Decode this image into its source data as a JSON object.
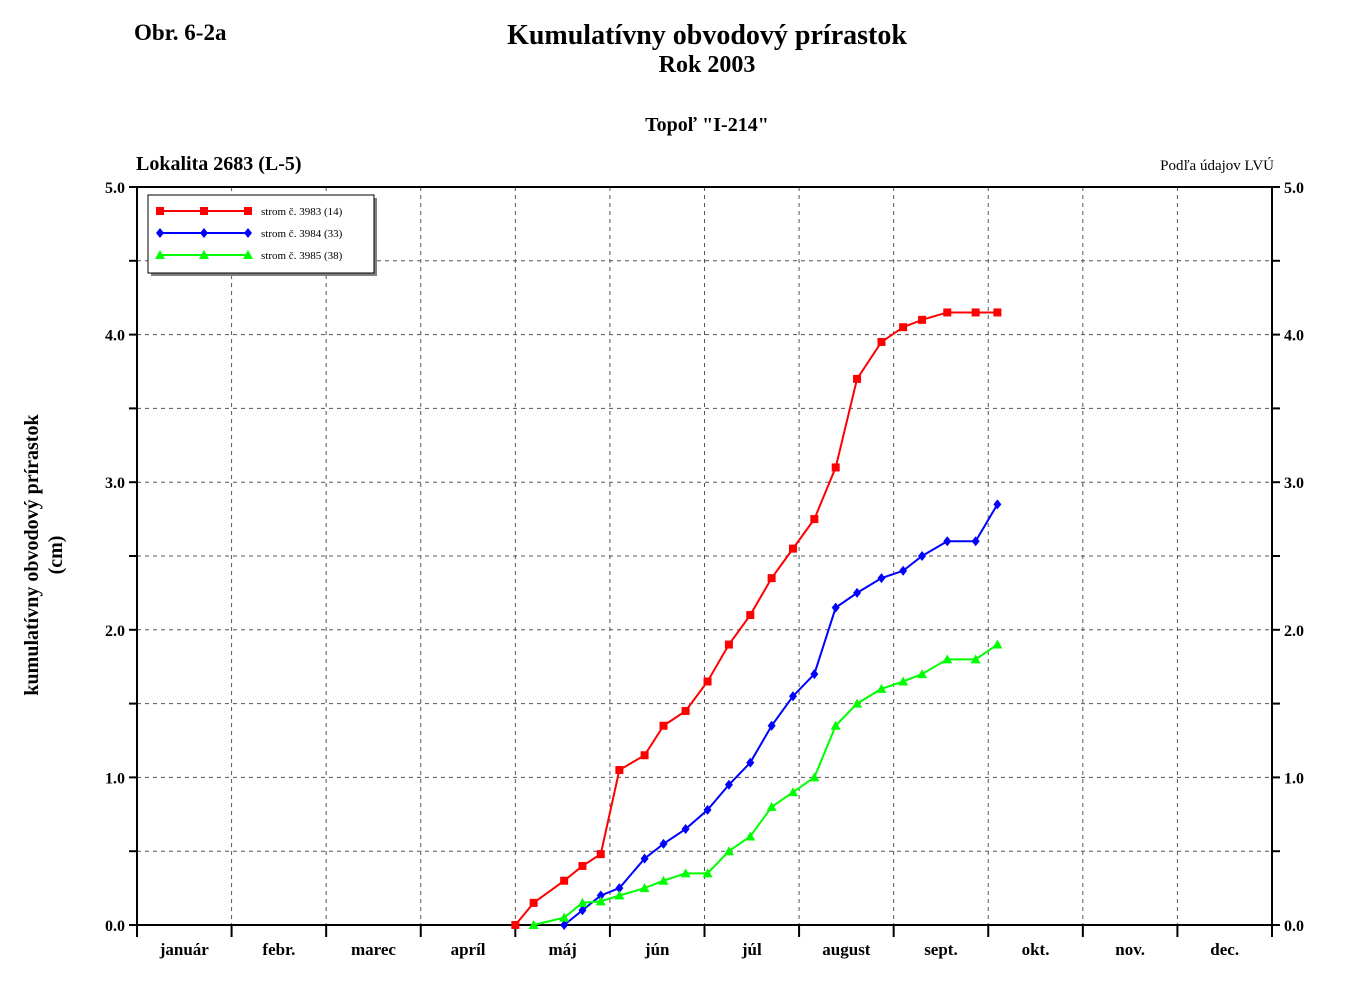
{
  "figure_label": "Obr. 6-2a",
  "header": {
    "title": "Kumulatívny obvodový prírastok",
    "subtitle": "Rok 2003",
    "species": "Topoľ \"I-214\"",
    "locality": "Lokalita 2683 (L-5)",
    "source": "Podľa údajov LVÚ"
  },
  "chart_data": {
    "type": "line",
    "title": "Kumulatívny obvodový prírastok",
    "subtitle": "Rok 2003",
    "ylabel_lines": [
      "kumulatívny obvodový prírastok",
      "(cm)"
    ],
    "ylim": [
      0,
      5
    ],
    "y_ticks": [
      "0.0",
      "1.0",
      "2.0",
      "3.0",
      "4.0",
      "5.0"
    ],
    "months": [
      "január",
      "febr.",
      "marec",
      "apríl",
      "máj",
      "jún",
      "júl",
      "august",
      "sept.",
      "okt.",
      "nov.",
      "dec."
    ],
    "x_unit": "day of year 2003",
    "grid": true,
    "legend_position": "top-left",
    "series": [
      {
        "name": "strom č. 3983 (14)",
        "color": "#ff0000",
        "marker": "square",
        "points": [
          [
            120,
            0.0
          ],
          [
            126,
            0.15
          ],
          [
            136,
            0.3
          ],
          [
            142,
            0.4
          ],
          [
            148,
            0.48
          ],
          [
            154,
            1.05
          ],
          [
            162,
            1.15
          ],
          [
            168,
            1.35
          ],
          [
            175,
            1.45
          ],
          [
            182,
            1.65
          ],
          [
            189,
            1.9
          ],
          [
            196,
            2.1
          ],
          [
            203,
            2.35
          ],
          [
            210,
            2.55
          ],
          [
            217,
            2.75
          ],
          [
            224,
            3.1
          ],
          [
            231,
            3.7
          ],
          [
            239,
            3.95
          ],
          [
            246,
            4.05
          ],
          [
            252,
            4.1
          ],
          [
            260,
            4.15
          ],
          [
            269,
            4.15
          ],
          [
            276,
            4.15
          ]
        ]
      },
      {
        "name": "strom č. 3984 (33)",
        "color": "#0000ff",
        "marker": "diamond",
        "points": [
          [
            136,
            0.0
          ],
          [
            142,
            0.1
          ],
          [
            148,
            0.2
          ],
          [
            154,
            0.25
          ],
          [
            162,
            0.45
          ],
          [
            168,
            0.55
          ],
          [
            175,
            0.65
          ],
          [
            182,
            0.78
          ],
          [
            189,
            0.95
          ],
          [
            196,
            1.1
          ],
          [
            203,
            1.35
          ],
          [
            210,
            1.55
          ],
          [
            217,
            1.7
          ],
          [
            224,
            2.15
          ],
          [
            231,
            2.25
          ],
          [
            239,
            2.35
          ],
          [
            246,
            2.4
          ],
          [
            252,
            2.5
          ],
          [
            260,
            2.6
          ],
          [
            269,
            2.6
          ],
          [
            276,
            2.85
          ]
        ]
      },
      {
        "name": "strom č. 3985 (38)",
        "color": "#00ff00",
        "marker": "triangle",
        "points": [
          [
            126,
            0.0
          ],
          [
            136,
            0.05
          ],
          [
            142,
            0.15
          ],
          [
            148,
            0.16
          ],
          [
            154,
            0.2
          ],
          [
            162,
            0.25
          ],
          [
            168,
            0.3
          ],
          [
            175,
            0.35
          ],
          [
            182,
            0.35
          ],
          [
            189,
            0.5
          ],
          [
            196,
            0.6
          ],
          [
            203,
            0.8
          ],
          [
            210,
            0.9
          ],
          [
            217,
            1.0
          ],
          [
            224,
            1.35
          ],
          [
            231,
            1.5
          ],
          [
            239,
            1.6
          ],
          [
            246,
            1.65
          ],
          [
            252,
            1.7
          ],
          [
            260,
            1.8
          ],
          [
            269,
            1.8
          ],
          [
            276,
            1.9
          ]
        ]
      }
    ]
  }
}
